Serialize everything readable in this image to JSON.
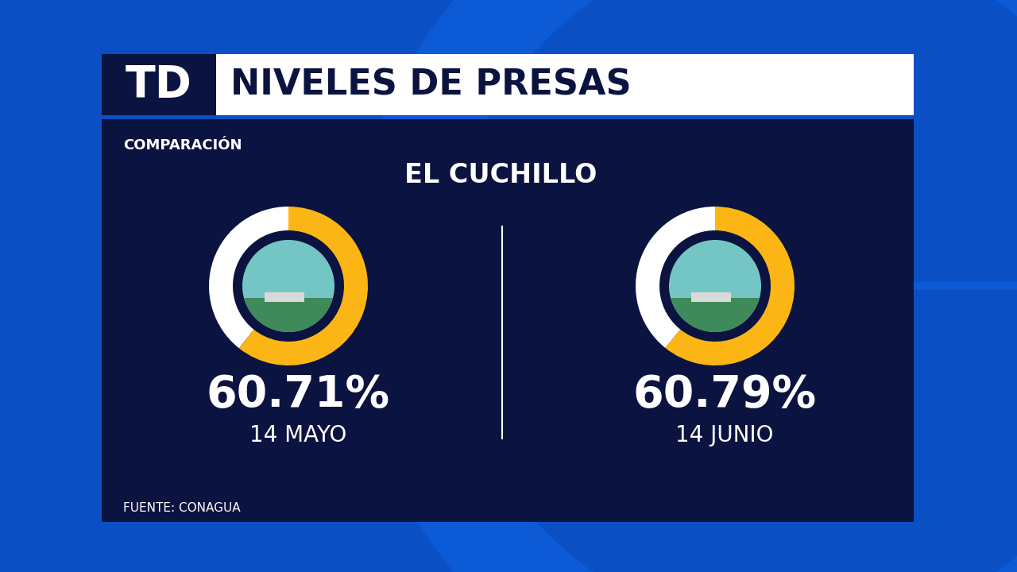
{
  "header": {
    "logo": "TD",
    "title": "NIVELES DE PRESAS",
    "subtitle": "COMPARACIÓN",
    "heading": "EL CUCHILLO",
    "source": "FUENTE: CONAGUA"
  },
  "chart_data": [
    {
      "type": "pie",
      "title": "14 MAYO",
      "values": [
        60.71
      ],
      "value_labels": [
        "60.71%"
      ],
      "data_labels": true,
      "color": "#fbb616",
      "ylim": [
        0,
        100
      ]
    },
    {
      "type": "pie",
      "title": "14 JUNIO",
      "values": [
        60.79
      ],
      "value_labels": [
        "60.79%"
      ],
      "data_labels": true,
      "color": "#fbb616",
      "ylim": [
        0,
        100
      ]
    }
  ]
}
